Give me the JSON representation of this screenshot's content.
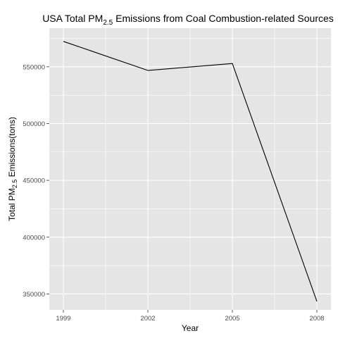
{
  "chart_data": {
    "type": "line",
    "title": {
      "prefix": "USA Total PM",
      "subscript": "2.5",
      "suffix": " Emissions from Coal Combustion-related Sources"
    },
    "xlabel": "Year",
    "ylabel": {
      "prefix": "Total PM",
      "subscript": "2.5",
      "suffix": " Emissions(tons)"
    },
    "x": [
      1999,
      2002,
      2005,
      2008
    ],
    "x_tick_labels": [
      "1999",
      "2002",
      "2005",
      "2008"
    ],
    "series": [
      {
        "values": [
          572346,
          546789,
          552881,
          343432
        ]
      }
    ],
    "y_ticks": [
      350000,
      400000,
      450000,
      500000,
      550000
    ],
    "y_tick_labels": [
      "350000",
      "400000",
      "450000",
      "500000",
      "550000"
    ],
    "xlim": [
      1998.5,
      2008.5
    ],
    "ylim": [
      336000,
      584000
    ],
    "grid": true,
    "panel_background": "#e5e5e5",
    "grid_color": "#ffffff",
    "line_color": "#000000"
  }
}
